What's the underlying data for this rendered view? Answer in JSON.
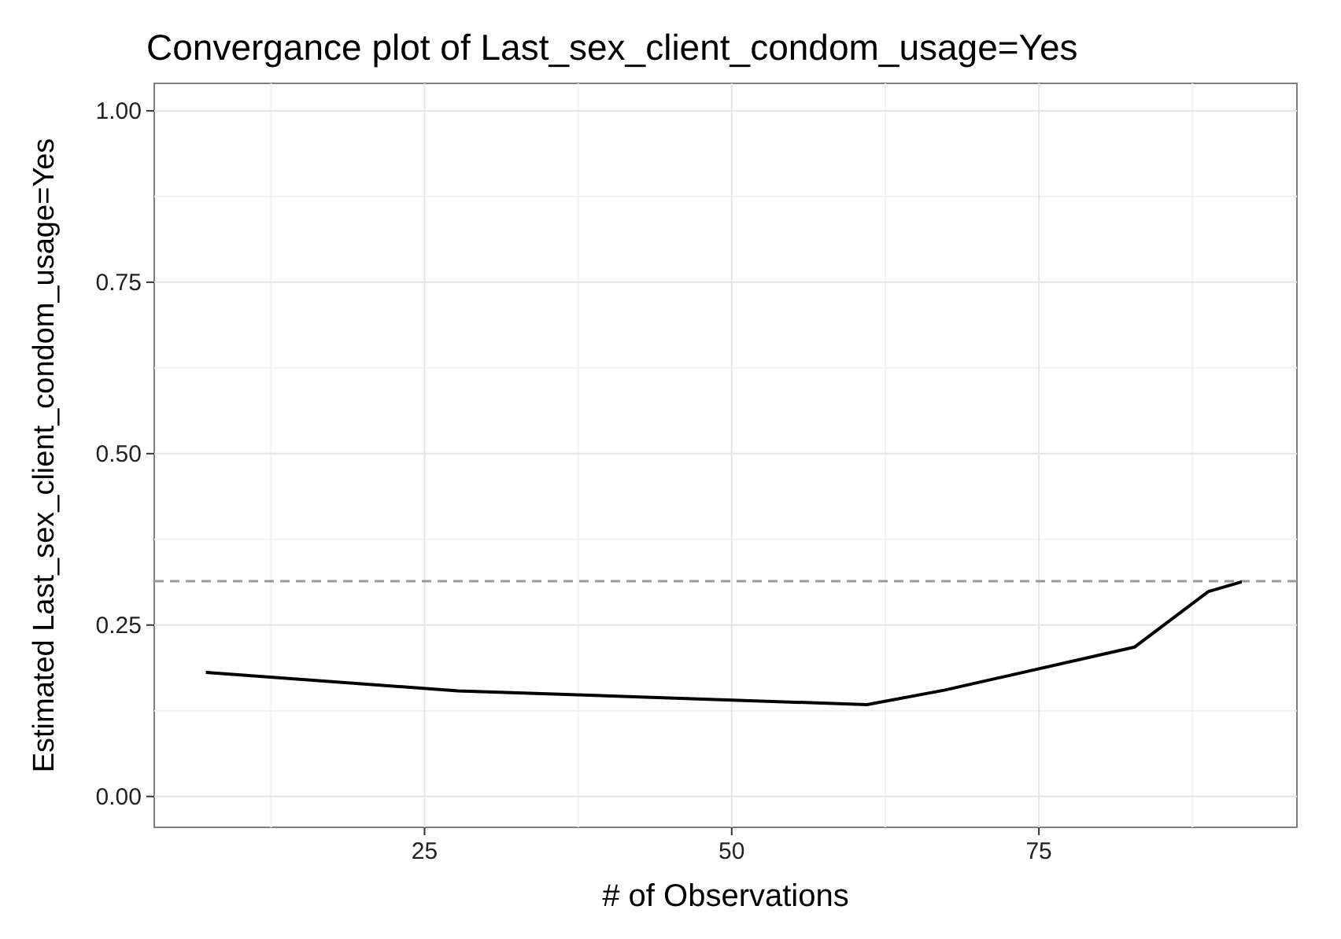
{
  "chart_data": {
    "type": "line",
    "title": "Convergance plot of Last_sex_client_condom_usage=Yes",
    "xlabel": "# of Observations",
    "ylabel": "Estimated Last_sex_client_condom_usage=Yes",
    "x": [
      7.2,
      27.7,
      61.0,
      67.3,
      82.8,
      88.8,
      91.5
    ],
    "series": [
      {
        "color": "#000000",
        "values": [
          0.181,
          0.154,
          0.134,
          0.155,
          0.218,
          0.299,
          0.313
        ]
      }
    ],
    "xlim": [
      3,
      96
    ],
    "xticks": [
      25,
      50,
      75
    ],
    "ylim": [
      -0.045,
      1.04
    ],
    "yticks": [
      {
        "value": 0,
        "label": "0.00"
      },
      {
        "value": 0.25,
        "label": "0.25"
      },
      {
        "value": 0.5,
        "label": "0.50"
      },
      {
        "value": 0.75,
        "label": "0.75"
      },
      {
        "value": 1,
        "label": "1.00"
      }
    ],
    "ref_lines": [
      {
        "axis": "y",
        "value": 0.314,
        "color": "#999999",
        "line_style": "dashed"
      }
    ],
    "grid": true,
    "line_style": "solid",
    "marker": "none"
  }
}
